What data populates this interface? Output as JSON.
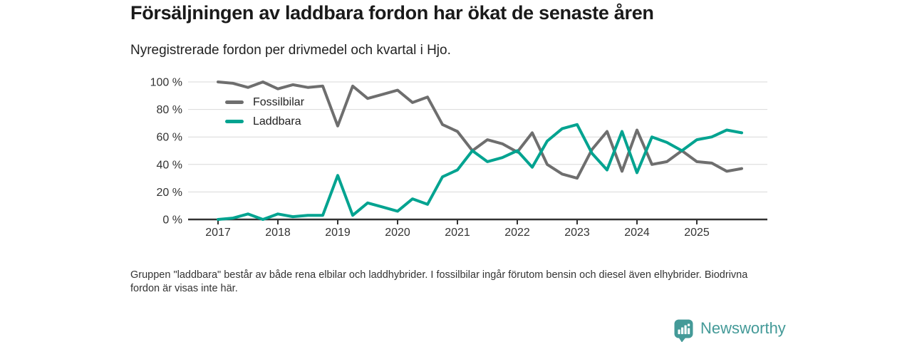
{
  "header": {
    "title": "Försäljningen av laddbara fordon har ökat de senaste åren",
    "subtitle": "Nyregistrerade fordon per drivmedel och kvartal i Hjo."
  },
  "chart_data": {
    "type": "line",
    "title": "Försäljningen av laddbara fordon har ökat de senaste åren",
    "subtitle": "Nyregistrerade fordon per drivmedel och kvartal i Hjo.",
    "unit": "%",
    "ylim": [
      0,
      100
    ],
    "grid": "horizontal",
    "legend_position": "top-left-inside",
    "y_ticks": [
      0,
      20,
      40,
      60,
      80,
      100
    ],
    "y_tick_labels": [
      "0 %",
      "20 %",
      "40 %",
      "60 %",
      "80 %",
      "100 %"
    ],
    "x_tick_labels": [
      "2017",
      "2018",
      "2019",
      "2020",
      "2021",
      "2022",
      "2023",
      "2024",
      "2025"
    ],
    "x": [
      "2017 Q1",
      "2017 Q2",
      "2017 Q3",
      "2017 Q4",
      "2018 Q1",
      "2018 Q2",
      "2018 Q3",
      "2018 Q4",
      "2019 Q1",
      "2019 Q2",
      "2019 Q3",
      "2019 Q4",
      "2020 Q1",
      "2020 Q2",
      "2020 Q3",
      "2020 Q4",
      "2021 Q1",
      "2021 Q2",
      "2021 Q3",
      "2021 Q4",
      "2022 Q1",
      "2022 Q2",
      "2022 Q3",
      "2022 Q4",
      "2023 Q1",
      "2023 Q2",
      "2023 Q3",
      "2023 Q4",
      "2024 Q1",
      "2024 Q2",
      "2024 Q3",
      "2024 Q4",
      "2025 Q1",
      "2025 Q2",
      "2025 Q3",
      "2025 Q4"
    ],
    "series": [
      {
        "name": "Fossilbilar",
        "color": "#6e6e6e",
        "values": [
          100,
          99,
          96,
          100,
          95,
          98,
          96,
          97,
          68,
          97,
          88,
          91,
          94,
          85,
          89,
          69,
          64,
          50,
          58,
          55,
          49,
          63,
          40,
          33,
          30,
          51,
          64,
          35,
          65,
          40,
          42,
          50,
          42,
          41,
          35,
          37
        ]
      },
      {
        "name": "Laddbara",
        "color": "#00a390",
        "values": [
          0,
          1,
          4,
          0,
          4,
          2,
          3,
          3,
          32,
          3,
          12,
          9,
          6,
          15,
          11,
          31,
          36,
          50,
          42,
          45,
          50,
          38,
          57,
          66,
          69,
          48,
          36,
          64,
          34,
          60,
          56,
          50,
          58,
          60,
          65,
          63
        ]
      }
    ]
  },
  "footnote": {
    "text": "Gruppen \"laddbara\" består av både rena elbilar och laddhybrider. I fossilbilar ingår förutom bensin och diesel även elhybrider. Biodrivna fordon är visas inte här."
  },
  "branding": {
    "logo_text": "Newsworthy",
    "logo_color": "#449a98"
  },
  "style": {
    "grid_color": "#d9d9d9",
    "axis_color": "#333333",
    "tick_label_color": "#333333"
  }
}
